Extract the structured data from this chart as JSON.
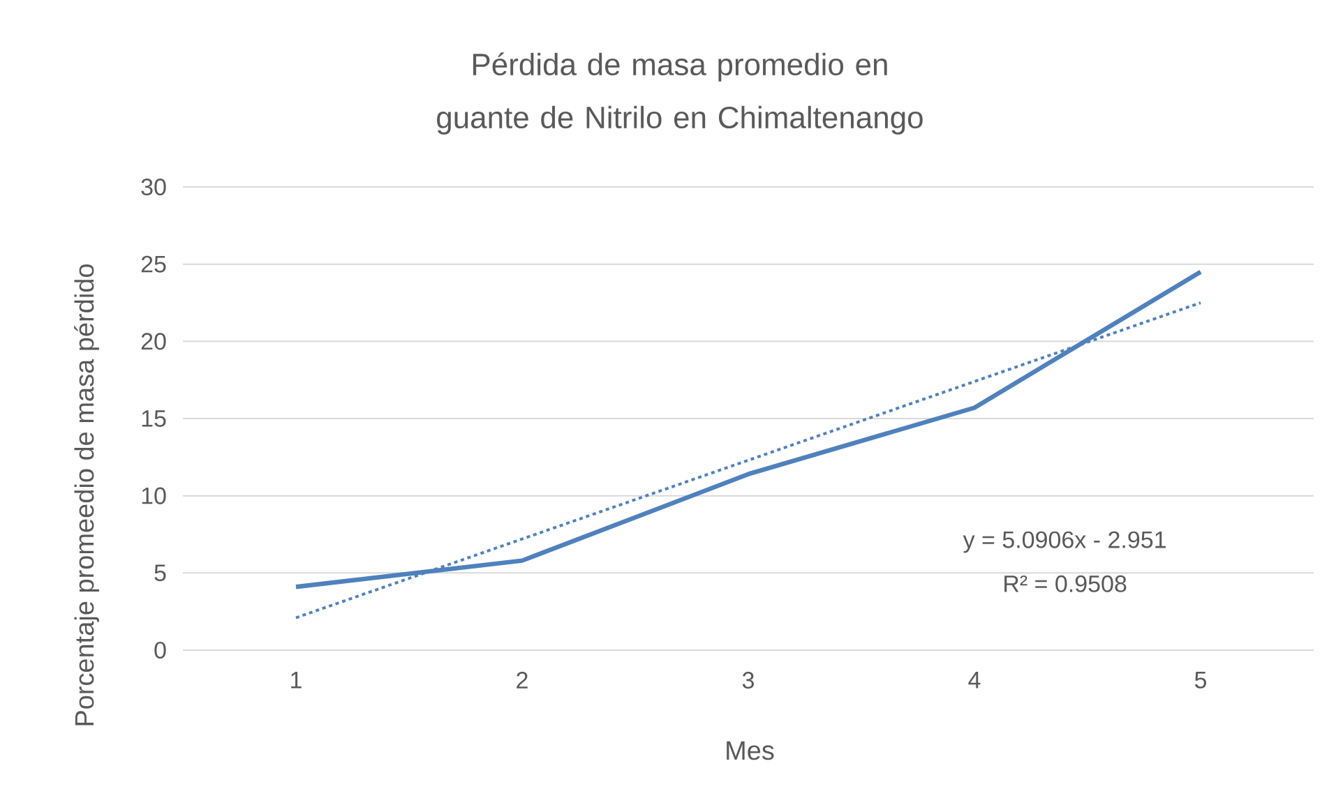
{
  "chart_data": {
    "type": "line",
    "title": "Pérdida de masa promedio en guante de Nitrilo en Chimaltenango",
    "xlabel": "Mes",
    "ylabel": "Porcentaje promeedio de masa pérdido",
    "categories": [
      "1",
      "2",
      "3",
      "4",
      "5"
    ],
    "series": [
      {
        "color": "#4f81bd",
        "values": [
          4.1,
          5.8,
          11.4,
          15.7,
          24.5
        ]
      },
      {
        "type": "line",
        "line_style": "dotted",
        "color": "#4f81bd",
        "values": [
          2.1,
          7.2,
          12.3,
          17.4,
          22.5
        ]
      }
    ],
    "ylim": [
      0,
      30
    ],
    "yticks": [
      0,
      5,
      10,
      15,
      20,
      25,
      30
    ],
    "grid": "y",
    "annotations": [
      "y = 5.0906x - 2.951",
      "R² = 0.9508"
    ]
  }
}
